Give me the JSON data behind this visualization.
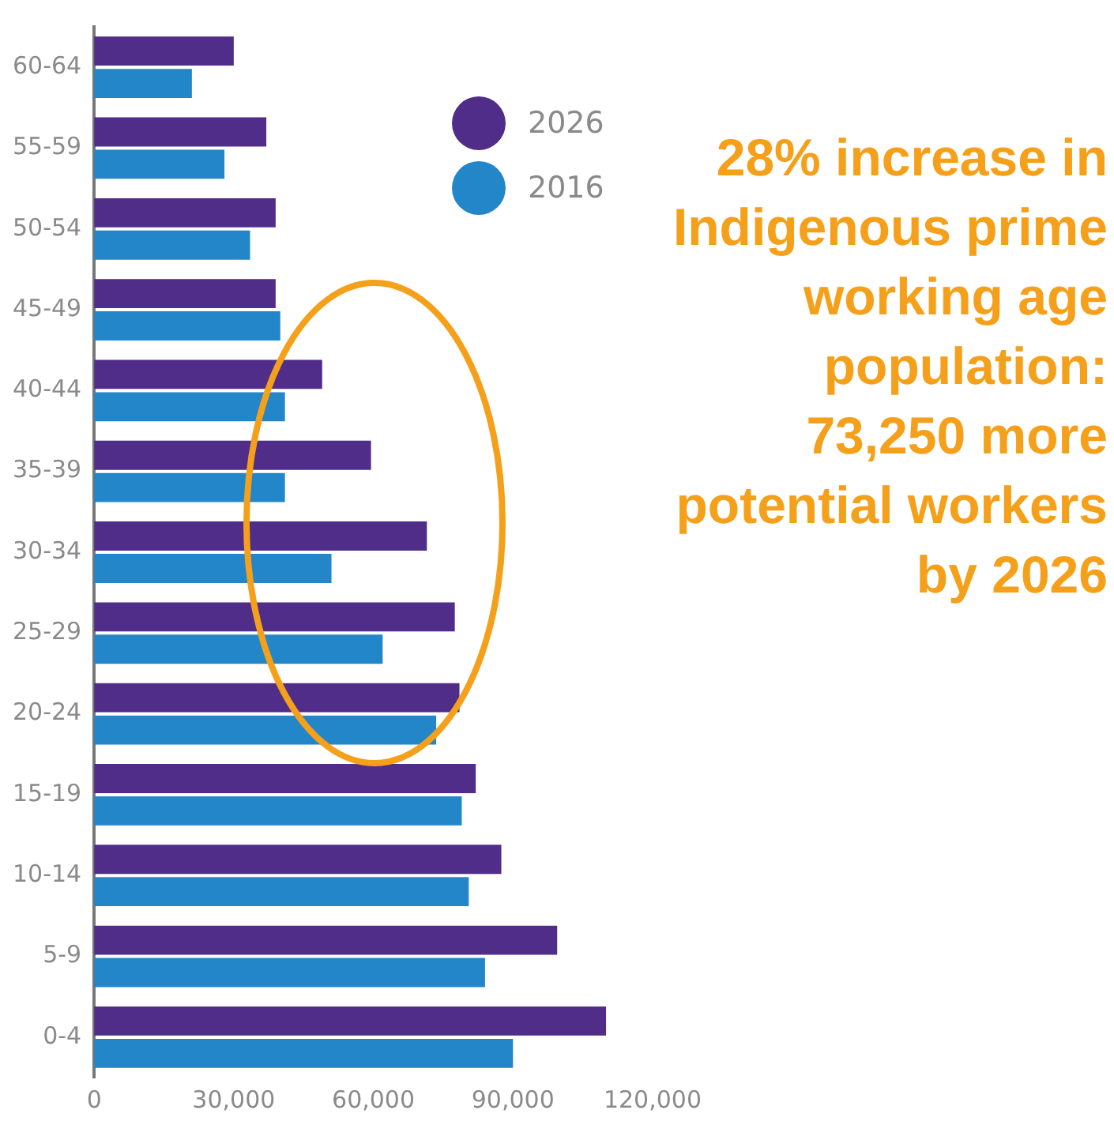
{
  "chart_data": {
    "type": "bar",
    "orientation": "horizontal",
    "categories": [
      "60-64",
      "55-59",
      "50-54",
      "45-49",
      "40-44",
      "35-39",
      "30-34",
      "25-29",
      "20-24",
      "15-19",
      "10-14",
      "5-9",
      "0-4"
    ],
    "series": [
      {
        "name": "2026",
        "color": "#512d8a",
        "values": [
          30000,
          37000,
          39000,
          39000,
          49000,
          59500,
          71500,
          77500,
          78500,
          82000,
          87500,
          99500,
          110000
        ]
      },
      {
        "name": "2016",
        "color": "#2386c8",
        "values": [
          21000,
          28000,
          33500,
          40000,
          41000,
          41000,
          51000,
          62000,
          73500,
          79000,
          80500,
          84000,
          90000
        ]
      }
    ],
    "xlim": [
      0,
      120000
    ],
    "xticks": [
      0,
      {
        "value": 30000,
        "label": "30,000"
      },
      {
        "value": 60000,
        "label": "60,000"
      },
      {
        "value": 90000,
        "label": "90,000"
      },
      {
        "value": 120000,
        "label": "120,000"
      }
    ],
    "grid": false,
    "legend": "top right",
    "annotations": [
      "28% increase in Indigenous prime working age population: 73,250 more potential workers by 2026"
    ]
  }
}
